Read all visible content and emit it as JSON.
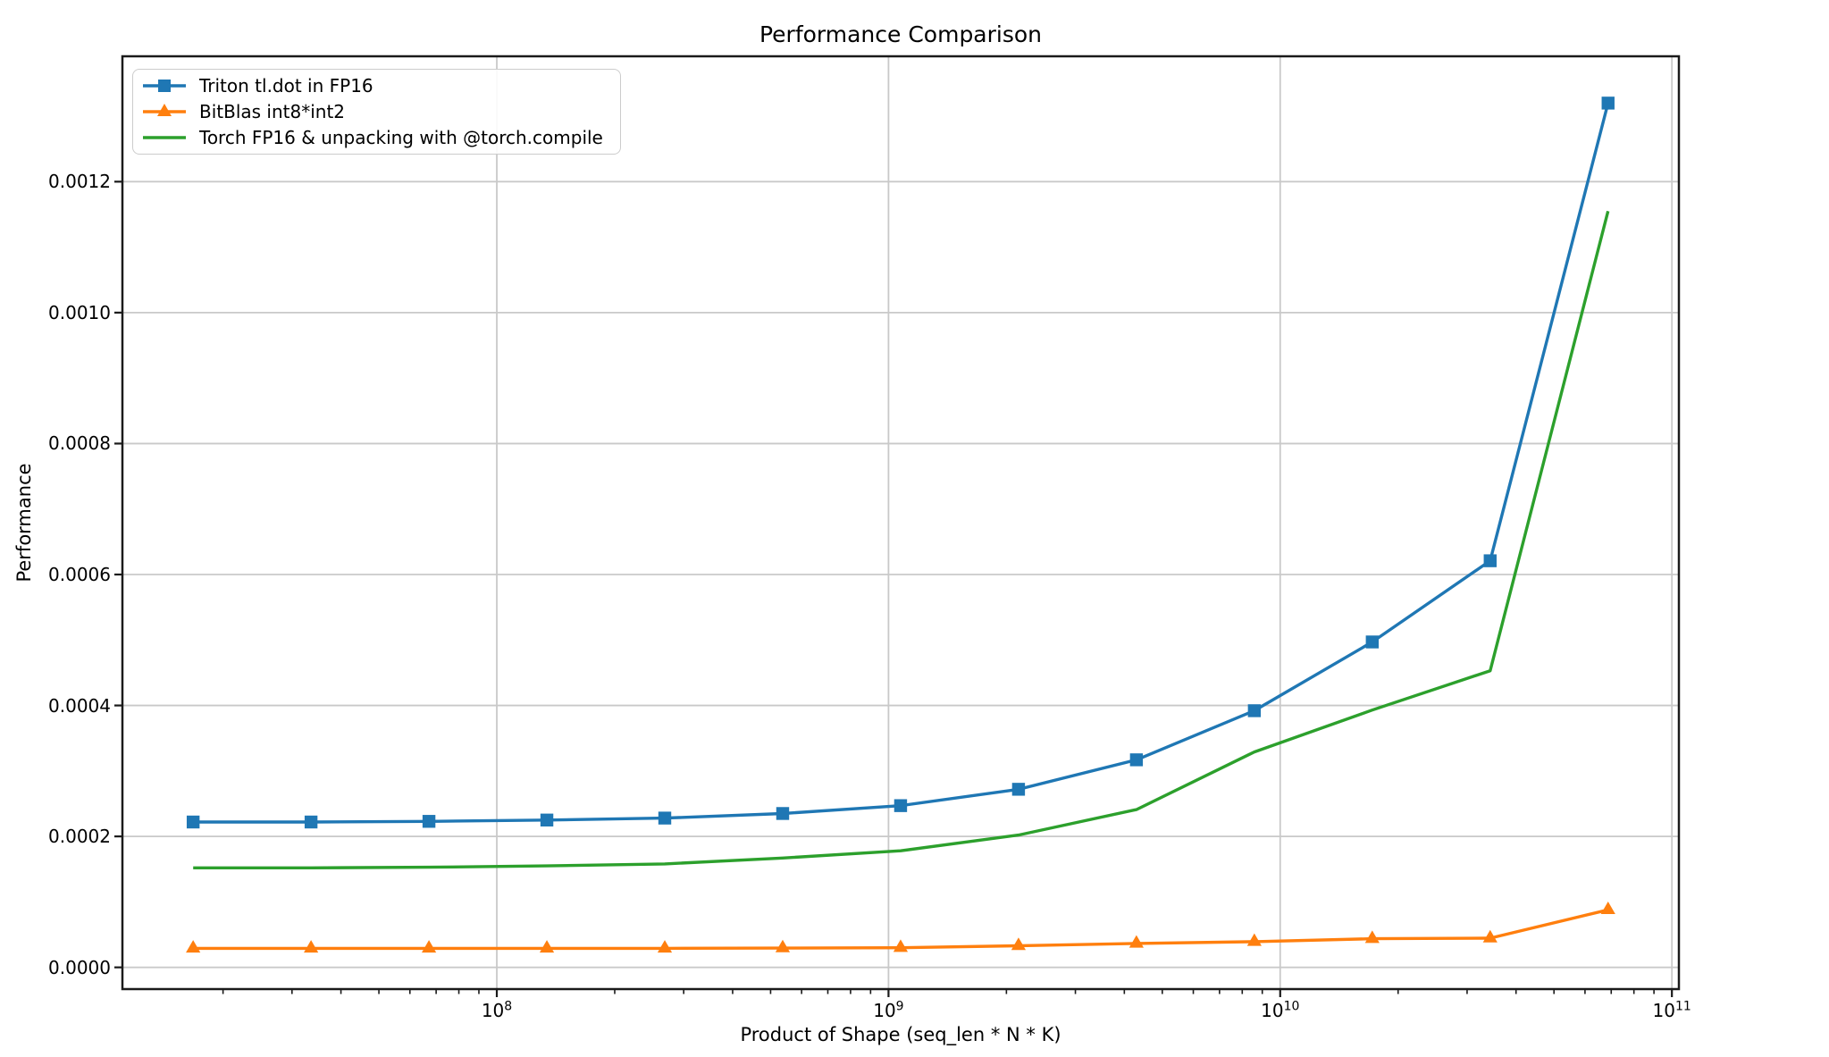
{
  "chart_data": {
    "type": "line",
    "title": "Performance Comparison",
    "xlabel": "Product of Shape (seq_len * N * K)",
    "ylabel": "Performance",
    "x_scale": "log",
    "grid": true,
    "legend_position": "upper left",
    "xlim": [
      11070000,
      104200000000
    ],
    "ylim": [
      -3.32e-05,
      0.0013915
    ],
    "x_ticks": [
      {
        "base": "10",
        "exponent": "8",
        "value": 100000000
      },
      {
        "base": "10",
        "exponent": "9",
        "value": 1000000000
      },
      {
        "base": "10",
        "exponent": "10",
        "value": 10000000000
      },
      {
        "base": "10",
        "exponent": "11",
        "value": 100000000000
      }
    ],
    "y_ticks": [
      {
        "label": "0.0000",
        "value": 0.0
      },
      {
        "label": "0.0002",
        "value": 0.0002
      },
      {
        "label": "0.0004",
        "value": 0.0004
      },
      {
        "label": "0.0006",
        "value": 0.0006
      },
      {
        "label": "0.0008",
        "value": 0.0008
      },
      {
        "label": "0.0010",
        "value": 0.001
      },
      {
        "label": "0.0012",
        "value": 0.0012
      }
    ],
    "x": [
      16777216,
      33554432,
      67108864,
      134217728,
      268435456,
      536870912,
      1073741824,
      2147483648,
      4294967296,
      8589934592,
      17179869184,
      34359738368,
      68719476736
    ],
    "series": [
      {
        "name": "Triton tl.dot in FP16",
        "color": "#1f77b4",
        "marker": "square",
        "values": [
          0.000222,
          0.000222,
          0.000223,
          0.000225,
          0.000228,
          0.000235,
          0.000247,
          0.000272,
          0.000317,
          0.000392,
          0.000497,
          0.000621,
          0.00132
        ]
      },
      {
        "name": "BitBlas int8*int2",
        "color": "#ff7f0e",
        "marker": "triangle",
        "values": [
          2.9e-05,
          2.9e-05,
          2.9e-05,
          2.9e-05,
          2.9e-05,
          2.95e-05,
          3e-05,
          3.3e-05,
          3.65e-05,
          3.92e-05,
          4.37e-05,
          4.46e-05,
          8.78e-05
        ]
      },
      {
        "name": "Torch FP16 & unpacking with @torch.compile",
        "color": "#2ca02c",
        "marker": "none",
        "values": [
          0.000152,
          0.000152,
          0.000153,
          0.000155,
          0.000158,
          0.000167,
          0.000178,
          0.000202,
          0.000241,
          0.000329,
          0.000393,
          0.000453,
          0.001155
        ]
      }
    ]
  }
}
